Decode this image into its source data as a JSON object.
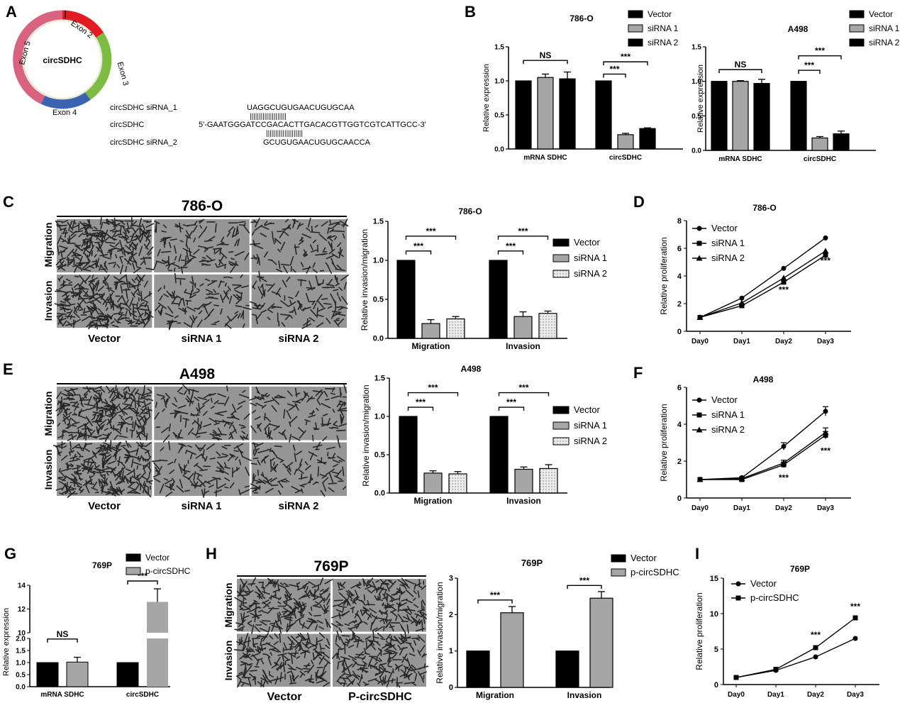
{
  "panel_letters": {
    "A": "A",
    "B": "B",
    "C": "C",
    "D": "D",
    "E": "E",
    "F": "F",
    "G": "G",
    "H": "H",
    "I": "I"
  },
  "colors": {
    "black": "#000000",
    "gray": "#a6a6a6",
    "dotted": "#e6e6e6",
    "exon2": "#e31b23",
    "exon3": "#7dbb42",
    "exon4": "#3a64b0",
    "exon5": "#d9637f",
    "micro": "#8f8f8f"
  },
  "diagram": {
    "center_label": "circSDHC",
    "exons": [
      "Exon 2",
      "Exon 3",
      "Exon 4",
      "Exon 5"
    ],
    "seq_labels": [
      "circSDHC siRNA_1",
      "circSDHC",
      "circSDHC siRNA_2"
    ],
    "siRNA_1": "UAGGCUGUGAACUGUGCAA",
    "target": "5'-GAATGGGATCCGACACTTGACACGTTGGTCGTCATTGCC-3'",
    "siRNA_2": "GCUGUGAACUGUGCAACCA",
    "bars": "||||||||||||||||||||"
  },
  "micrographs": [
    {
      "title": "786-O",
      "rows": [
        "Migration",
        "Invasion"
      ],
      "cols": [
        "Vector",
        "siRNA 1",
        "siRNA 2"
      ]
    },
    {
      "title": "A498",
      "rows": [
        "Migration",
        "Invasion"
      ],
      "cols": [
        "Vector",
        "siRNA 1",
        "siRNA 2"
      ]
    },
    {
      "title": "769P",
      "rows": [
        "Migration",
        "Invasion"
      ],
      "cols": [
        "Vector",
        "P-circSDHC"
      ]
    }
  ],
  "chart_data": [
    {
      "id": "B1",
      "type": "bar",
      "title": "786-O",
      "categories": [
        "mRNA SDHC",
        "circSDHC"
      ],
      "ylabel": "Relative expression",
      "ylim": [
        0,
        1.5
      ],
      "yticks": [
        "0.0",
        "0.5",
        "1.0",
        "1.5"
      ],
      "series": [
        {
          "name": "Vector",
          "values": [
            1.0,
            1.0
          ],
          "errors": [
            0,
            0
          ],
          "fill": "#000000"
        },
        {
          "name": "siRNA 1",
          "values": [
            1.05,
            0.21
          ],
          "errors": [
            0.05,
            0.02
          ],
          "fill": "#a6a6a6"
        },
        {
          "name": "siRNA 2",
          "values": [
            1.03,
            0.3
          ],
          "errors": [
            0.1,
            0.01
          ],
          "fill": "#000000"
        }
      ],
      "annotations": [
        {
          "text": "NS",
          "group": 0,
          "from": 0,
          "to": 2,
          "level": 1.3
        },
        {
          "text": "***",
          "group": 1,
          "from": 0,
          "to": 1,
          "level": 1.1
        },
        {
          "text": "***",
          "group": 1,
          "from": 0,
          "to": 2,
          "level": 1.28
        }
      ],
      "legend": "top-right"
    },
    {
      "id": "B2",
      "type": "bar",
      "title": "A498",
      "categories": [
        "mRNA SDHC",
        "circSDHC"
      ],
      "ylabel": "Relative expression",
      "ylim": [
        0,
        1.5
      ],
      "yticks": [
        "0.0",
        "0.5",
        "1.0",
        "1.5"
      ],
      "series": [
        {
          "name": "Vector",
          "values": [
            1.0,
            1.0
          ],
          "errors": [
            0,
            0
          ],
          "fill": "#000000"
        },
        {
          "name": "siRNA 1",
          "values": [
            1.0,
            0.18
          ],
          "errors": [
            0.01,
            0.02
          ],
          "fill": "#a6a6a6"
        },
        {
          "name": "siRNA 2",
          "values": [
            0.97,
            0.24
          ],
          "errors": [
            0.06,
            0.04
          ],
          "fill": "#000000"
        }
      ],
      "annotations": [
        {
          "text": "NS",
          "group": 0,
          "from": 0,
          "to": 2,
          "level": 1.17
        },
        {
          "text": "***",
          "group": 1,
          "from": 0,
          "to": 1,
          "level": 1.16
        },
        {
          "text": "***",
          "group": 1,
          "from": 0,
          "to": 2,
          "level": 1.37
        }
      ],
      "legend": "top-right"
    },
    {
      "id": "C",
      "type": "bar",
      "title": "786-O",
      "categories": [
        "Migration",
        "Invasion"
      ],
      "ylabel": "Relative invasion/migration",
      "ylim": [
        0,
        1.5
      ],
      "yticks": [
        "0.0",
        "0.5",
        "1.0",
        "1.5"
      ],
      "series": [
        {
          "name": "Vector",
          "values": [
            1.0,
            1.0
          ],
          "errors": [
            0,
            0
          ],
          "fill": "#000000"
        },
        {
          "name": "siRNA 1",
          "values": [
            0.19,
            0.28
          ],
          "errors": [
            0.05,
            0.06
          ],
          "fill": "#a6a6a6"
        },
        {
          "name": "siRNA 2",
          "values": [
            0.25,
            0.32
          ],
          "errors": [
            0.03,
            0.03
          ],
          "fill": "#e6e6e6"
        }
      ],
      "annotations": [
        {
          "text": "***",
          "group": 0,
          "from": 0,
          "to": 1,
          "level": 1.12
        },
        {
          "text": "***",
          "group": 0,
          "from": 0,
          "to": 2,
          "level": 1.31
        },
        {
          "text": "***",
          "group": 1,
          "from": 0,
          "to": 1,
          "level": 1.12
        },
        {
          "text": "***",
          "group": 1,
          "from": 0,
          "to": 2,
          "level": 1.31
        }
      ],
      "legend": "right"
    },
    {
      "id": "E",
      "type": "bar",
      "title": "A498",
      "categories": [
        "Migration",
        "Invasion"
      ],
      "ylabel": "Relative invasion/migration",
      "ylim": [
        0,
        1.5
      ],
      "yticks": [
        "0.0",
        "0.5",
        "1.0",
        "1.5"
      ],
      "series": [
        {
          "name": "Vector",
          "values": [
            1.0,
            1.0
          ],
          "errors": [
            0,
            0
          ],
          "fill": "#000000"
        },
        {
          "name": "siRNA 1",
          "values": [
            0.26,
            0.31
          ],
          "errors": [
            0.03,
            0.03
          ],
          "fill": "#a6a6a6"
        },
        {
          "name": "siRNA 2",
          "values": [
            0.25,
            0.32
          ],
          "errors": [
            0.03,
            0.05
          ],
          "fill": "#e6e6e6"
        }
      ],
      "annotations": [
        {
          "text": "***",
          "group": 0,
          "from": 0,
          "to": 1,
          "level": 1.12
        },
        {
          "text": "***",
          "group": 0,
          "from": 0,
          "to": 2,
          "level": 1.31
        },
        {
          "text": "***",
          "group": 1,
          "from": 0,
          "to": 1,
          "level": 1.12
        },
        {
          "text": "***",
          "group": 1,
          "from": 0,
          "to": 2,
          "level": 1.31
        }
      ],
      "legend": "right"
    },
    {
      "id": "D",
      "type": "line",
      "title": "786-O",
      "categories": [
        "Day0",
        "Day1",
        "Day2",
        "Day3"
      ],
      "ylabel": "Relative proliferation",
      "ylim": [
        0,
        8
      ],
      "yticks": [
        "0",
        "2",
        "4",
        "6",
        "8"
      ],
      "series": [
        {
          "name": "Vector",
          "values": [
            1.0,
            2.4,
            4.55,
            6.75
          ],
          "marker": "circle"
        },
        {
          "name": "siRNA 1",
          "values": [
            1.0,
            1.85,
            3.55,
            5.5
          ],
          "marker": "square"
        },
        {
          "name": "siRNA 2",
          "values": [
            1.0,
            2.05,
            3.85,
            5.8
          ],
          "marker": "triangle"
        }
      ],
      "annotations": [
        {
          "text": "***",
          "index": 2,
          "value": 2.8
        },
        {
          "text": "***",
          "index": 3,
          "value": 4.9
        }
      ],
      "legend": "top-left"
    },
    {
      "id": "F",
      "type": "line",
      "title": "A498",
      "categories": [
        "Day0",
        "Day1",
        "Day2",
        "Day3"
      ],
      "ylabel": "Relative proliferation",
      "ylim": [
        0,
        6
      ],
      "yticks": [
        "0",
        "2",
        "4",
        "6"
      ],
      "series": [
        {
          "name": "Vector",
          "values": [
            1.0,
            1.1,
            2.8,
            4.7
          ],
          "errors": [
            0,
            0.05,
            0.2,
            0.25
          ],
          "marker": "circle"
        },
        {
          "name": "siRNA 1",
          "values": [
            1.0,
            1.0,
            1.8,
            3.4
          ],
          "errors": [
            0,
            0.05,
            0.15,
            0.2
          ],
          "marker": "square"
        },
        {
          "name": "siRNA 2",
          "values": [
            1.0,
            1.05,
            1.9,
            3.55
          ],
          "errors": [
            0,
            0.05,
            0.15,
            0.25
          ],
          "marker": "triangle"
        }
      ],
      "annotations": [
        {
          "text": "***",
          "index": 2,
          "value": 0.95
        },
        {
          "text": "***",
          "index": 3,
          "value": 2.4
        }
      ],
      "legend": "top-left"
    },
    {
      "id": "G",
      "type": "bar",
      "title": "769P",
      "categories": [
        "mRNA SDHC",
        "circSDHC"
      ],
      "ylabel": "Relative expression",
      "broken_axis": true,
      "lower_range": [
        0,
        2
      ],
      "upper_range": [
        10,
        14
      ],
      "yticks_lower": [
        "0.0",
        "0.5",
        "1.0",
        "1.5",
        "2.0"
      ],
      "yticks_upper": [
        "10",
        "12",
        "14"
      ],
      "series": [
        {
          "name": "Vector",
          "values": [
            1.0,
            1.0
          ],
          "errors": [
            0,
            0
          ],
          "fill": "#000000"
        },
        {
          "name": "p-circSDHC",
          "values": [
            1.02,
            12.6
          ],
          "errors": [
            0.2,
            1.1
          ],
          "fill": "#a6a6a6"
        }
      ],
      "annotations": [
        {
          "text": "NS",
          "group": 0,
          "level": 1.8
        },
        {
          "text": "***",
          "group": 1,
          "level": 14.0
        }
      ],
      "legend": "top"
    },
    {
      "id": "H",
      "type": "bar",
      "title": "769P",
      "categories": [
        "Migration",
        "Invasion"
      ],
      "ylabel": "Relative invasion/migration",
      "ylim": [
        0,
        3
      ],
      "yticks": [
        "0",
        "1",
        "2",
        "3"
      ],
      "series": [
        {
          "name": "Vector",
          "values": [
            1.0,
            1.0
          ],
          "errors": [
            0,
            0
          ],
          "fill": "#000000"
        },
        {
          "name": "p-circSDHC",
          "values": [
            2.05,
            2.45
          ],
          "errors": [
            0.17,
            0.18
          ],
          "fill": "#a6a6a6"
        }
      ],
      "annotations": [
        {
          "text": "***",
          "group": 0,
          "level": 2.4
        },
        {
          "text": "***",
          "group": 1,
          "level": 2.8
        }
      ],
      "legend": "top-right"
    },
    {
      "id": "I",
      "type": "line",
      "title": "769P",
      "categories": [
        "Day0",
        "Day1",
        "Day2",
        "Day3"
      ],
      "ylabel": "Relative proliferation",
      "ylim": [
        0,
        15
      ],
      "yticks": [
        "0",
        "5",
        "10",
        "15"
      ],
      "series": [
        {
          "name": "Vector",
          "values": [
            1.0,
            2.0,
            3.9,
            6.5
          ],
          "marker": "circle"
        },
        {
          "name": "p-circSDHC",
          "values": [
            1.0,
            2.15,
            5.2,
            9.4
          ],
          "marker": "square"
        }
      ],
      "annotations": [
        {
          "text": "***",
          "index": 2,
          "value": 6.6
        },
        {
          "text": "***",
          "index": 3,
          "value": 10.6
        }
      ],
      "legend": "top-left"
    }
  ]
}
